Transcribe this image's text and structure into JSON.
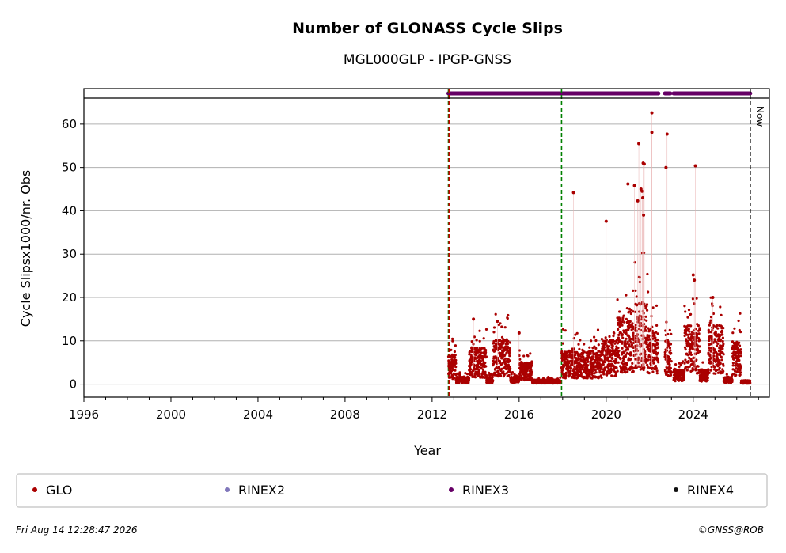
{
  "chart_data": {
    "type": "scatter",
    "title": "Number of GLONASS Cycle Slips",
    "subtitle": "MGL000GLP - IPGP-GNSS",
    "xlabel": "Year",
    "ylabel": "Cycle Slipsx1000/nr. Obs",
    "xlim": [
      1996,
      2027.5
    ],
    "ylim": [
      -3,
      66
    ],
    "x_ticks": [
      "1996",
      "2000",
      "2004",
      "2008",
      "2012",
      "2016",
      "2020",
      "2024"
    ],
    "y_ticks": [
      "0",
      "10",
      "20",
      "30",
      "40",
      "50",
      "60"
    ],
    "grid": "y",
    "now_label": "Now",
    "now_year": 2026.62,
    "event_lines": [
      {
        "year": 2012.75,
        "color": "#008000"
      },
      {
        "year": 2012.78,
        "color": "#cc0000"
      },
      {
        "year": 2017.95,
        "color": "#008000"
      }
    ],
    "rinex3_segments": [
      [
        2012.75,
        2022.4
      ],
      [
        2022.7,
        2022.95
      ],
      [
        2023.1,
        2026.62
      ]
    ],
    "series": [
      {
        "name": "GLO",
        "color": "#aa0000",
        "segments": [
          {
            "start": 2012.75,
            "end": 2013.1,
            "base": 4
          },
          {
            "start": 2013.1,
            "end": 2013.7,
            "base": 1
          },
          {
            "start": 2013.7,
            "end": 2014.5,
            "base": 5
          },
          {
            "start": 2014.5,
            "end": 2014.8,
            "base": 1
          },
          {
            "start": 2014.8,
            "end": 2015.6,
            "base": 6
          },
          {
            "start": 2015.6,
            "end": 2016.0,
            "base": 1
          },
          {
            "start": 2016.0,
            "end": 2016.6,
            "base": 3
          },
          {
            "start": 2016.6,
            "end": 2017.9,
            "base": 0.6
          },
          {
            "start": 2017.95,
            "end": 2019.8,
            "base": 4.5
          },
          {
            "start": 2019.8,
            "end": 2020.5,
            "base": 6
          },
          {
            "start": 2020.5,
            "end": 2021.3,
            "base": 9
          },
          {
            "start": 2021.3,
            "end": 2021.9,
            "base": 11
          },
          {
            "start": 2021.9,
            "end": 2022.4,
            "base": 8
          },
          {
            "start": 2022.7,
            "end": 2023.0,
            "base": 6
          },
          {
            "start": 2023.1,
            "end": 2023.6,
            "base": 2
          },
          {
            "start": 2023.6,
            "end": 2024.3,
            "base": 8
          },
          {
            "start": 2024.3,
            "end": 2024.7,
            "base": 2
          },
          {
            "start": 2024.7,
            "end": 2025.4,
            "base": 8
          },
          {
            "start": 2025.4,
            "end": 2025.8,
            "base": 1
          },
          {
            "start": 2025.8,
            "end": 2026.2,
            "base": 6
          },
          {
            "start": 2026.2,
            "end": 2026.62,
            "base": 0.5
          }
        ],
        "outliers": [
          [
            2018.5,
            44.2
          ],
          [
            2020.0,
            37.6
          ],
          [
            2021.0,
            46.2
          ],
          [
            2021.3,
            45.8
          ],
          [
            2021.5,
            55.5
          ],
          [
            2021.45,
            42.3
          ],
          [
            2021.6,
            45.0
          ],
          [
            2021.65,
            44.5
          ],
          [
            2021.7,
            51.0
          ],
          [
            2021.75,
            50.8
          ],
          [
            2021.68,
            43.0
          ],
          [
            2021.72,
            39.0
          ],
          [
            2022.1,
            62.6
          ],
          [
            2022.1,
            58.1
          ],
          [
            2022.8,
            57.7
          ],
          [
            2022.75,
            50.0
          ],
          [
            2024.1,
            50.4
          ],
          [
            2024.0,
            25.2
          ],
          [
            2024.05,
            24.0
          ],
          [
            2024.9,
            20.0
          ],
          [
            2013.9,
            15.0
          ],
          [
            2015.0,
            14.5
          ],
          [
            2016.0,
            11.8
          ],
          [
            2021.4,
            18.3
          ]
        ]
      },
      {
        "name": "RINEX2",
        "color": "#8077bb"
      },
      {
        "name": "RINEX3",
        "color": "#660066"
      },
      {
        "name": "RINEX4",
        "color": "#111111"
      }
    ],
    "legend_position": "bottom"
  },
  "footer": {
    "timestamp": "Fri Aug 14 12:28:47 2026",
    "credit": "©GNSS@ROB"
  }
}
